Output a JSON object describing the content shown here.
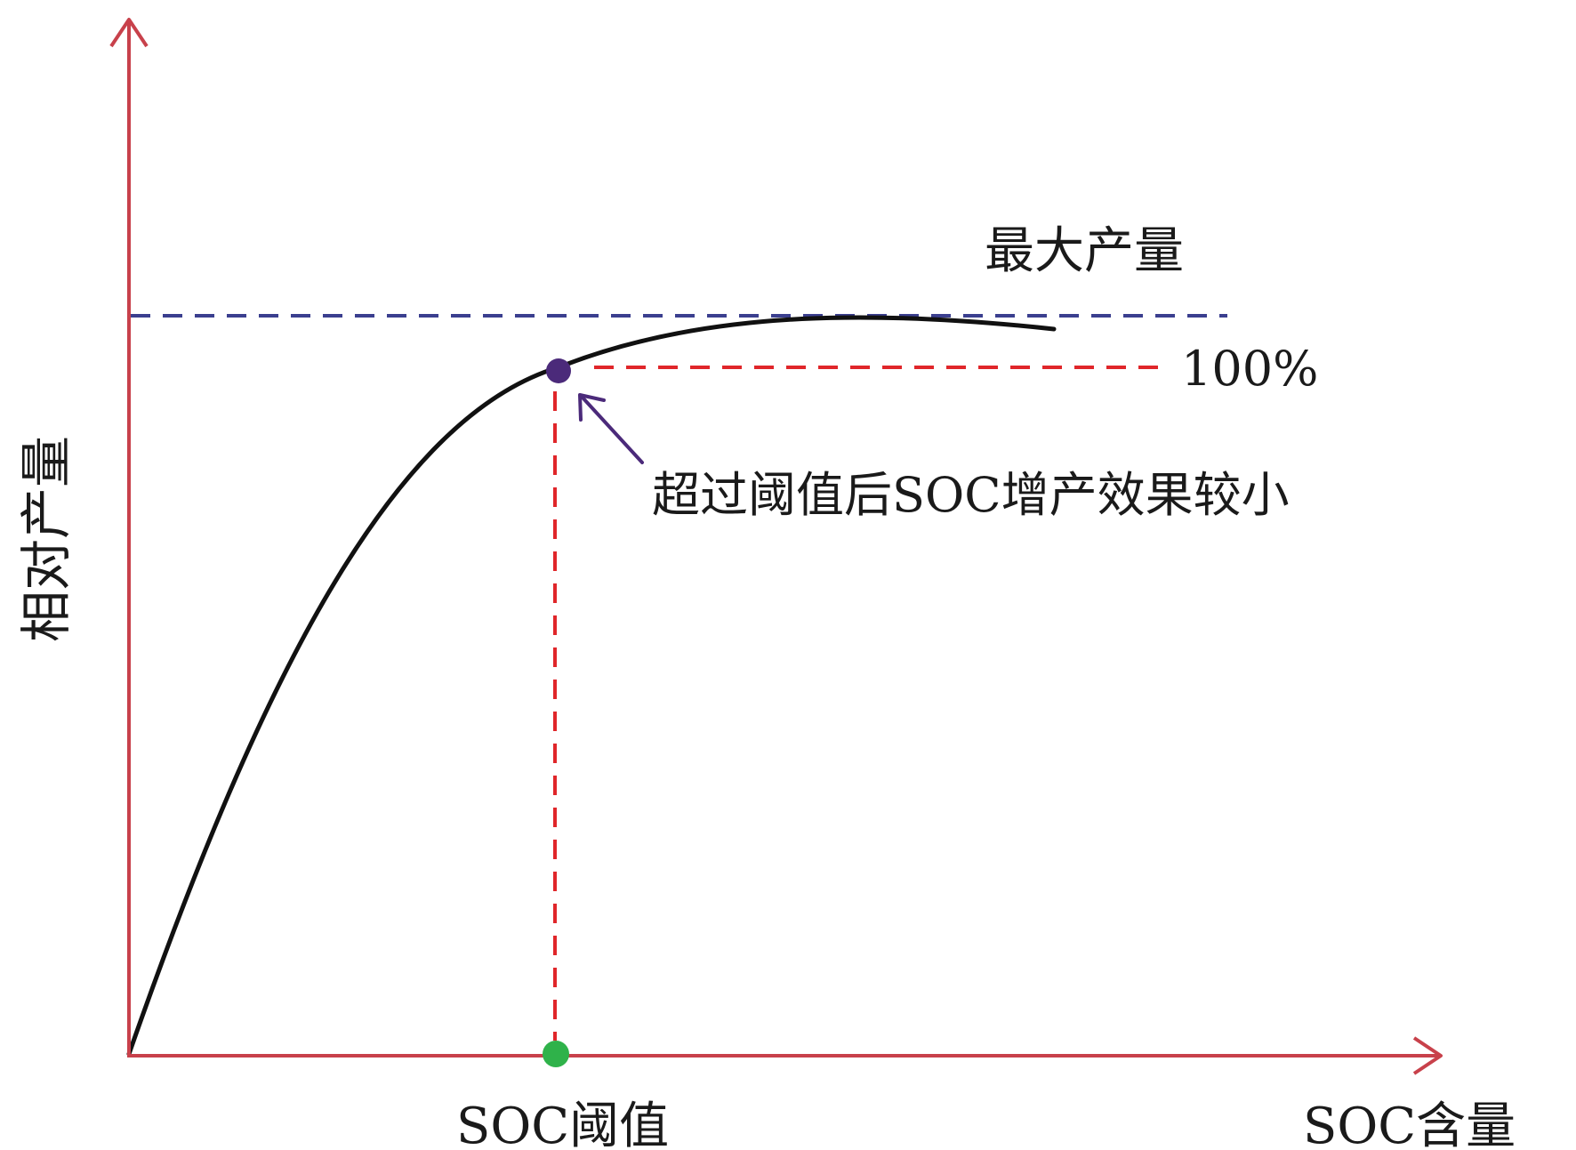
{
  "chart_data": {
    "type": "line",
    "ylabel": "相对产量",
    "xlabel": "SOC含量",
    "threshold_label": "SOC阈值",
    "max_yield_label": "最大产量",
    "percent_label": "100%",
    "annotation": "超过阈值后SOC增产效果较小",
    "colors": {
      "axis": "#c8414b",
      "curve": "#111111",
      "max_line": "#3b3f8f",
      "threshold_line": "#e0262a",
      "threshold_point": "#4b2a7a",
      "axis_point": "#2fb24a",
      "arrow": "#4b2a7a"
    }
  }
}
